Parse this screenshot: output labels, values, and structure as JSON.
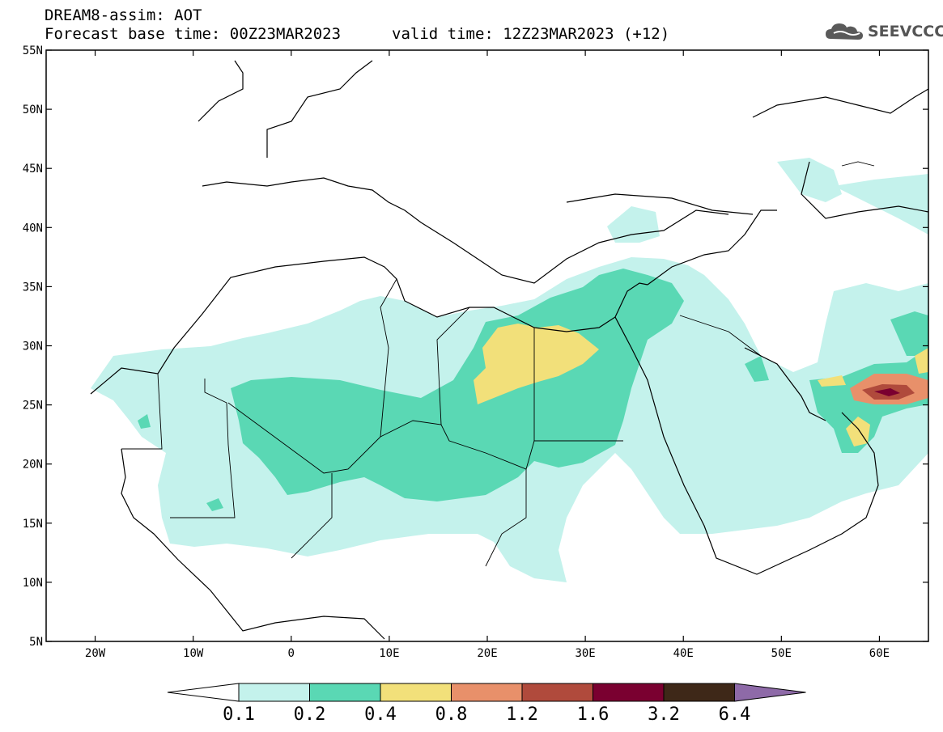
{
  "header": {
    "title_line1": "DREAM8-assim: AOT",
    "base_time": "Forecast base time: 00Z23MAR2023",
    "valid_time": "valid time: 12Z23MAR2023 (+12)"
  },
  "logo": {
    "text": "SEEVCCC",
    "icon": "cloud-icon"
  },
  "map": {
    "lon_range": [
      -25,
      65
    ],
    "lat_range": [
      5,
      55
    ],
    "lat_ticks": [
      "5N",
      "10N",
      "15N",
      "20N",
      "25N",
      "30N",
      "35N",
      "40N",
      "45N",
      "50N",
      "55N"
    ],
    "lon_ticks": [
      "20W",
      "10W",
      "0",
      "10E",
      "20E",
      "30E",
      "40E",
      "50E",
      "60E"
    ]
  },
  "colorbar": {
    "labels": [
      "0.1",
      "0.2",
      "0.4",
      "0.8",
      "1.2",
      "1.6",
      "3.2",
      "6.4"
    ],
    "colors": [
      "#c4f2ec",
      "#5ad8b4",
      "#f2e07a",
      "#e8906a",
      "#b04a3c",
      "#7a0030",
      "#3e2818",
      "#8e6aa8"
    ]
  }
}
